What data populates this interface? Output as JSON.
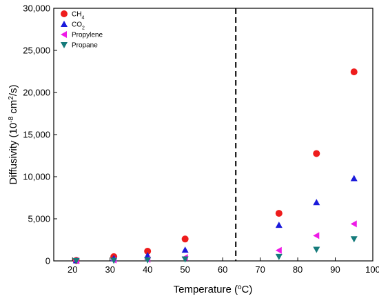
{
  "chart_data": {
    "type": "scatter",
    "xlabel": {
      "pre": "Temperature (",
      "sup": "o",
      "post": "C)"
    },
    "ylabel": {
      "pre": "Diffusivity (10",
      "sup1": "-8",
      "mid": " cm",
      "sup2": "2",
      "post": "/s)"
    },
    "xlim": [
      15,
      100
    ],
    "ylim": [
      0,
      30000
    ],
    "xticks": [
      20,
      30,
      40,
      50,
      60,
      70,
      80,
      90,
      100
    ],
    "yticks": [
      0,
      5000,
      10000,
      15000,
      20000,
      25000,
      30000
    ],
    "ytick_labels": [
      "0",
      "5,000",
      "10,000",
      "15,000",
      "20,000",
      "25,000",
      "30,000"
    ],
    "grid": false,
    "legend_position": "top-left",
    "vline_x": 63.5,
    "vline_style": "dashed",
    "series": [
      {
        "name": "CH",
        "name_sub": "4",
        "marker": "circle",
        "color": "#ee1c1c",
        "x": [
          21,
          31,
          40,
          50,
          75,
          85,
          95
        ],
        "y": [
          50,
          500,
          1150,
          2600,
          5650,
          12750,
          22450
        ]
      },
      {
        "name": "CO",
        "name_sub": "2",
        "marker": "triangle-up",
        "color": "#1a1adb",
        "x": [
          21,
          31,
          40,
          50,
          75,
          85,
          95
        ],
        "y": [
          40,
          300,
          650,
          1300,
          4250,
          6950,
          9800
        ]
      },
      {
        "name": "Propylene",
        "name_sub": "",
        "marker": "triangle-left",
        "color": "#ee1ae6",
        "x": [
          21,
          31,
          40,
          50,
          75,
          85,
          95
        ],
        "y": [
          20,
          100,
          180,
          400,
          1250,
          3000,
          4400
        ]
      },
      {
        "name": "Propane",
        "name_sub": "",
        "marker": "triangle-down",
        "color": "#157b7b",
        "x": [
          21,
          31,
          40,
          50,
          75,
          85,
          95
        ],
        "y": [
          10,
          50,
          100,
          200,
          500,
          1350,
          2600
        ]
      }
    ]
  }
}
